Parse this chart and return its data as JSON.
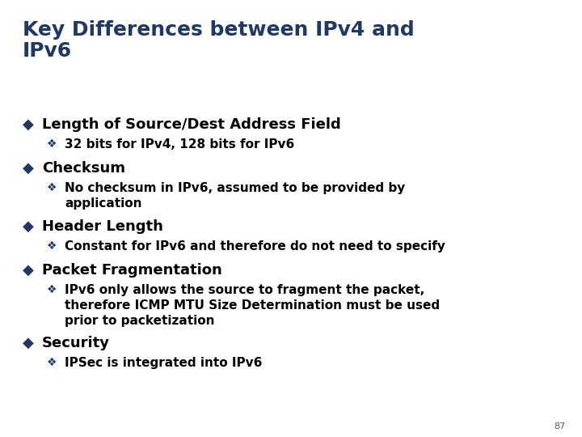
{
  "title_line1": "Key Differences between IPv4 and",
  "title_line2": "IPv6",
  "title_color": "#1F3864",
  "title_fontsize": 18,
  "background_color": "#FFFFFF",
  "bullet_color": "#1F3864",
  "sub_bullet_color": "#1F3864",
  "text_color": "#000000",
  "bullets": [
    {
      "main": "Length of Source/Dest Address Field",
      "subs": [
        "32 bits for IPv4, 128 bits for IPv6"
      ],
      "sub_lines": [
        1
      ]
    },
    {
      "main": "Checksum",
      "subs": [
        "No checksum in IPv6, assumed to be provided by\napplication"
      ],
      "sub_lines": [
        2
      ]
    },
    {
      "main": "Header Length",
      "subs": [
        "Constant for IPv6 and therefore do not need to specify"
      ],
      "sub_lines": [
        1
      ]
    },
    {
      "main": "Packet Fragmentation",
      "subs": [
        "IPv6 only allows the source to fragment the packet,\ntherefore ICMP MTU Size Determination must be used\nprior to packetization"
      ],
      "sub_lines": [
        3
      ]
    },
    {
      "main": "Security",
      "subs": [
        "IPSec is integrated into IPv6"
      ],
      "sub_lines": [
        1
      ]
    }
  ],
  "page_number": "87",
  "main_fontsize": 13,
  "sub_fontsize": 11,
  "main_bullet": "◆",
  "sub_bullet": "❖"
}
